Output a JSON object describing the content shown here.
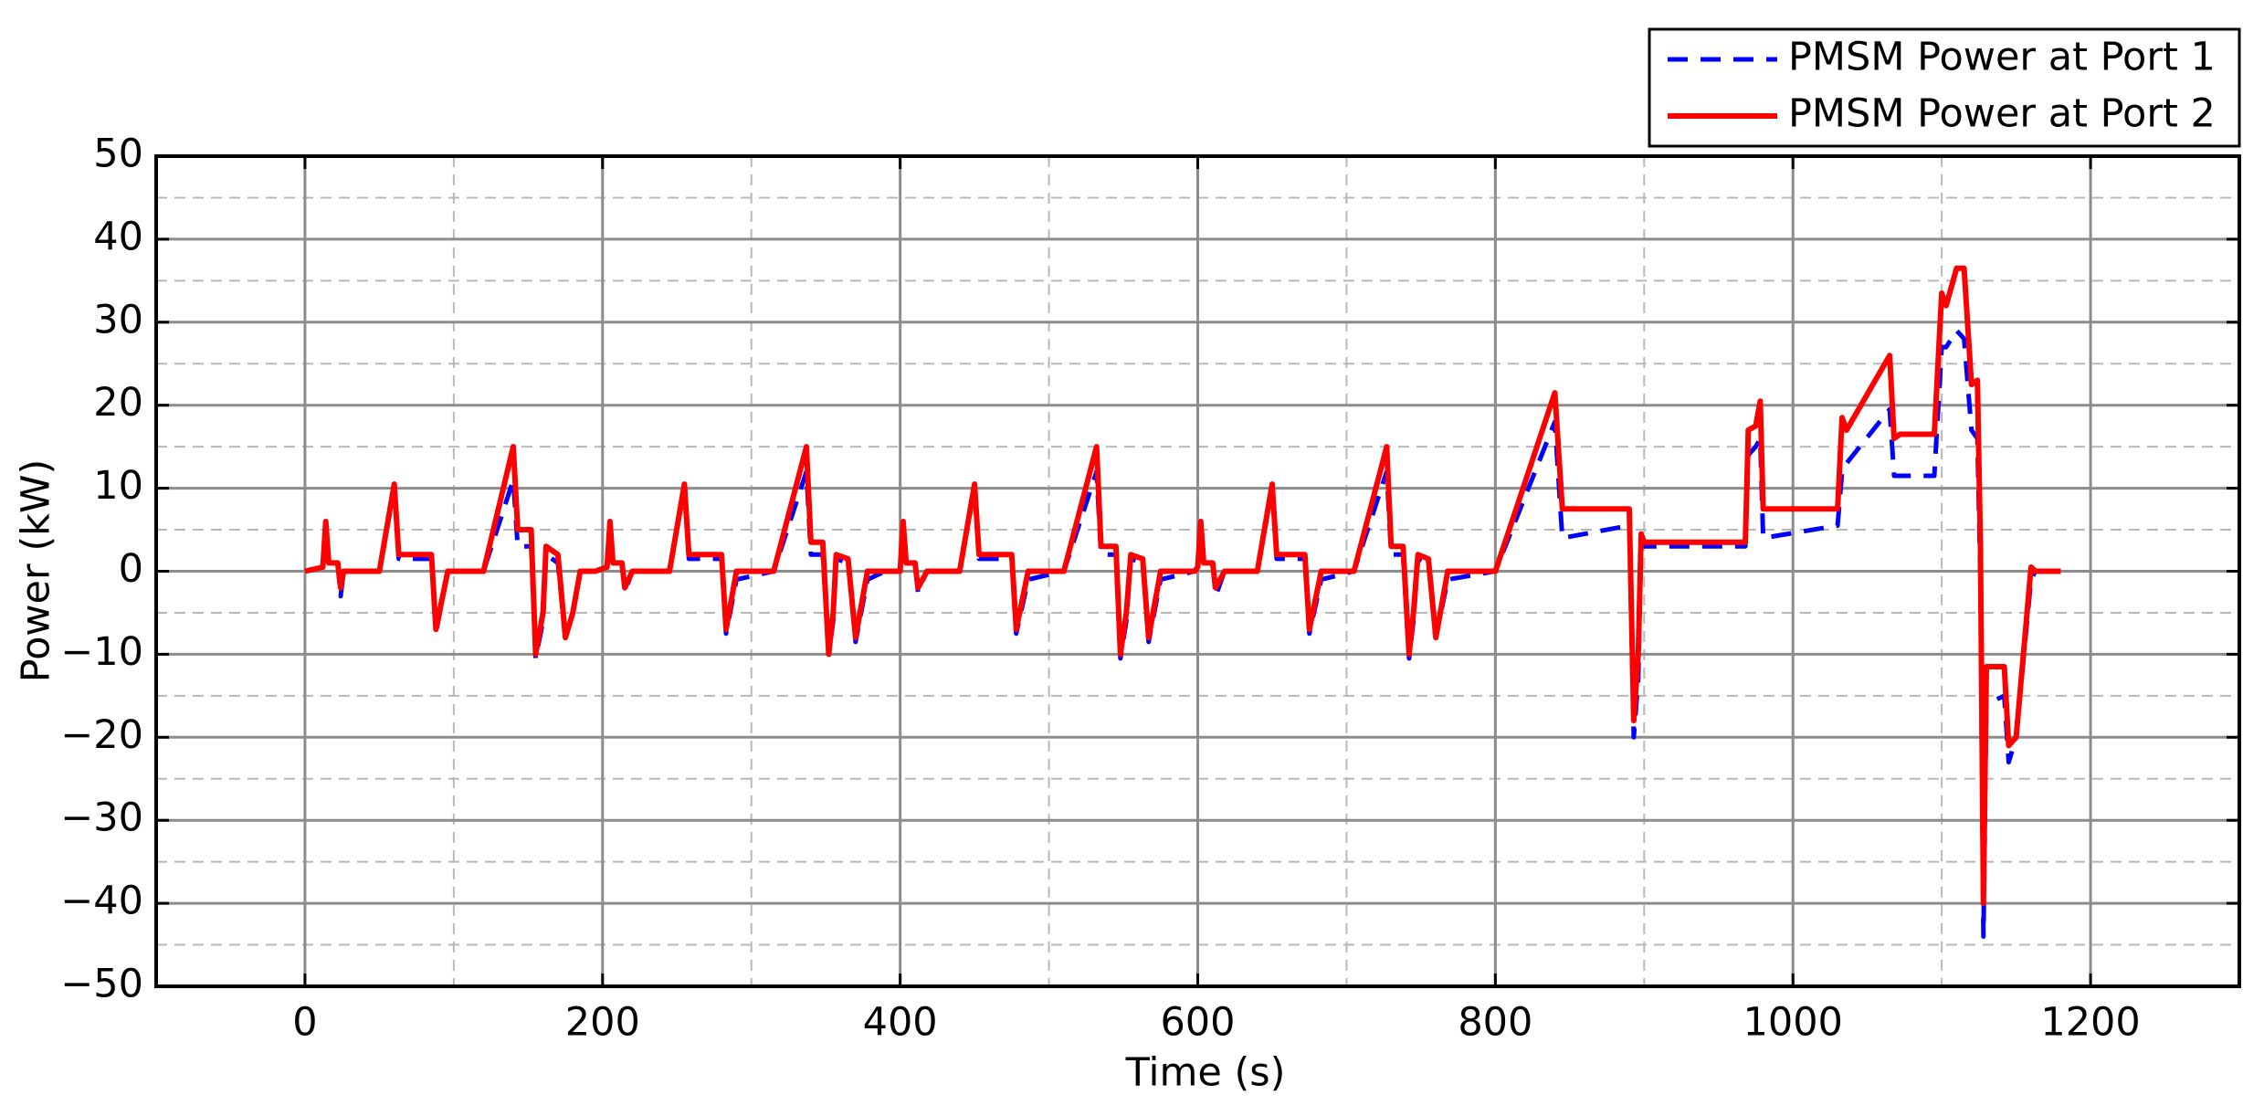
{
  "chart_data": {
    "type": "line",
    "x_label": "Time (s)",
    "y_label": "Power (kW)",
    "x": [
      0,
      12,
      14,
      16,
      22,
      24,
      26,
      50,
      60,
      63,
      85,
      88,
      96,
      120,
      140,
      143,
      152,
      155,
      160,
      162,
      170,
      175,
      180,
      185,
      195,
      203,
      205,
      207,
      213,
      215,
      220,
      245,
      255,
      258,
      280,
      283,
      290,
      315,
      337,
      340,
      348,
      352,
      355,
      357,
      365,
      370,
      378,
      390,
      400,
      402,
      404,
      410,
      412,
      418,
      440,
      450,
      453,
      475,
      478,
      486,
      510,
      532,
      535,
      545,
      548,
      552,
      555,
      563,
      567,
      575,
      598,
      600,
      602,
      604,
      610,
      612,
      618,
      640,
      650,
      653,
      672,
      675,
      683,
      705,
      727,
      730,
      738,
      742,
      745,
      748,
      755,
      760,
      768,
      800,
      840,
      845,
      890,
      893,
      896,
      898,
      900,
      968,
      970,
      975,
      978,
      980,
      1030,
      1033,
      1036,
      1065,
      1068,
      1072,
      1095,
      1100,
      1103,
      1110,
      1115,
      1120,
      1124,
      1126,
      1128,
      1130,
      1142,
      1145,
      1150,
      1160,
      1163,
      1180
    ],
    "series": [
      {
        "name": "PMSM Power at Port 1",
        "color": "#0000ff",
        "dashed": true,
        "values": [
          0,
          0.5,
          5,
          1,
          1,
          -3,
          0,
          0,
          10,
          1.5,
          1.5,
          -7.5,
          0,
          0,
          11,
          3,
          3,
          -10.5,
          -6,
          2,
          1,
          -8,
          -5,
          0,
          0,
          0.5,
          5,
          1,
          1,
          -2.5,
          0,
          0,
          10,
          1.5,
          1.5,
          -7.5,
          -1,
          0,
          12,
          2,
          2,
          -10,
          -6,
          1.5,
          1,
          -8.5,
          -1,
          0,
          0,
          5,
          1,
          1,
          -2.5,
          0,
          0,
          10,
          1.5,
          1.5,
          -7.5,
          -1,
          0,
          12,
          2,
          2,
          -10.5,
          -6,
          1.5,
          1,
          -8.5,
          -1,
          0,
          0.5,
          5,
          1,
          1,
          -3,
          0,
          0,
          10,
          1.5,
          1.5,
          -7.5,
          -1,
          0,
          12,
          2,
          2,
          -10.5,
          -6,
          1.5,
          1,
          -8,
          -1,
          0,
          18,
          4,
          5.5,
          -20,
          -13,
          3,
          3,
          3,
          14,
          15,
          16,
          4,
          5.5,
          12,
          13,
          19.5,
          11.5,
          11.5,
          11.5,
          27,
          27,
          29,
          28,
          17,
          16,
          -1,
          -44,
          -16,
          -15,
          -23,
          -20,
          -1,
          0,
          0
        ]
      },
      {
        "name": "PMSM Power at Port 2",
        "color": "#ff0000",
        "dashed": false,
        "values": [
          0,
          0.5,
          6,
          1,
          1,
          -2,
          0,
          0,
          10.5,
          2,
          2,
          -7,
          0,
          0,
          15,
          5,
          5,
          -10,
          -5,
          3,
          2,
          -8,
          -5,
          0,
          0,
          0.5,
          6,
          1,
          1,
          -2,
          0,
          0,
          10.5,
          2,
          2,
          -7,
          0,
          0,
          15,
          3.5,
          3.5,
          -10,
          -5,
          2,
          1.5,
          -8,
          0,
          0,
          0,
          6,
          1,
          1,
          -2,
          0,
          0,
          10.5,
          2,
          2,
          -7,
          0,
          0,
          15,
          3,
          3,
          -10,
          -5,
          2,
          1.5,
          -8,
          0,
          0,
          0.5,
          6,
          1,
          1,
          -2,
          0,
          0,
          10.5,
          2,
          2,
          -7,
          0,
          0,
          15,
          3,
          3,
          -10,
          -5,
          2,
          1.5,
          -8,
          0,
          0,
          21.5,
          7.5,
          7.5,
          -18,
          -10,
          4.5,
          3.5,
          3.5,
          17,
          17.5,
          20.5,
          7.5,
          7.5,
          18.5,
          17,
          26,
          16,
          16.5,
          16.5,
          33.5,
          32,
          36.5,
          36.5,
          22.5,
          23,
          3,
          -40,
          -11.5,
          -11.5,
          -21,
          -20,
          0.5,
          0,
          0
        ]
      }
    ],
    "xlim": [
      -100,
      1300
    ],
    "xticks": [
      0,
      200,
      400,
      600,
      800,
      1000,
      1200
    ],
    "ylim": [
      -50,
      50
    ],
    "yticks": [
      {
        "value": -50,
        "label": "−50"
      },
      {
        "value": -40,
        "label": "−40"
      },
      {
        "value": -30,
        "label": "−30"
      },
      {
        "value": -20,
        "label": "−20"
      },
      {
        "value": -10,
        "label": "−10"
      },
      0,
      10,
      20,
      30,
      40,
      50
    ],
    "grid": true,
    "legend": "top-right"
  }
}
